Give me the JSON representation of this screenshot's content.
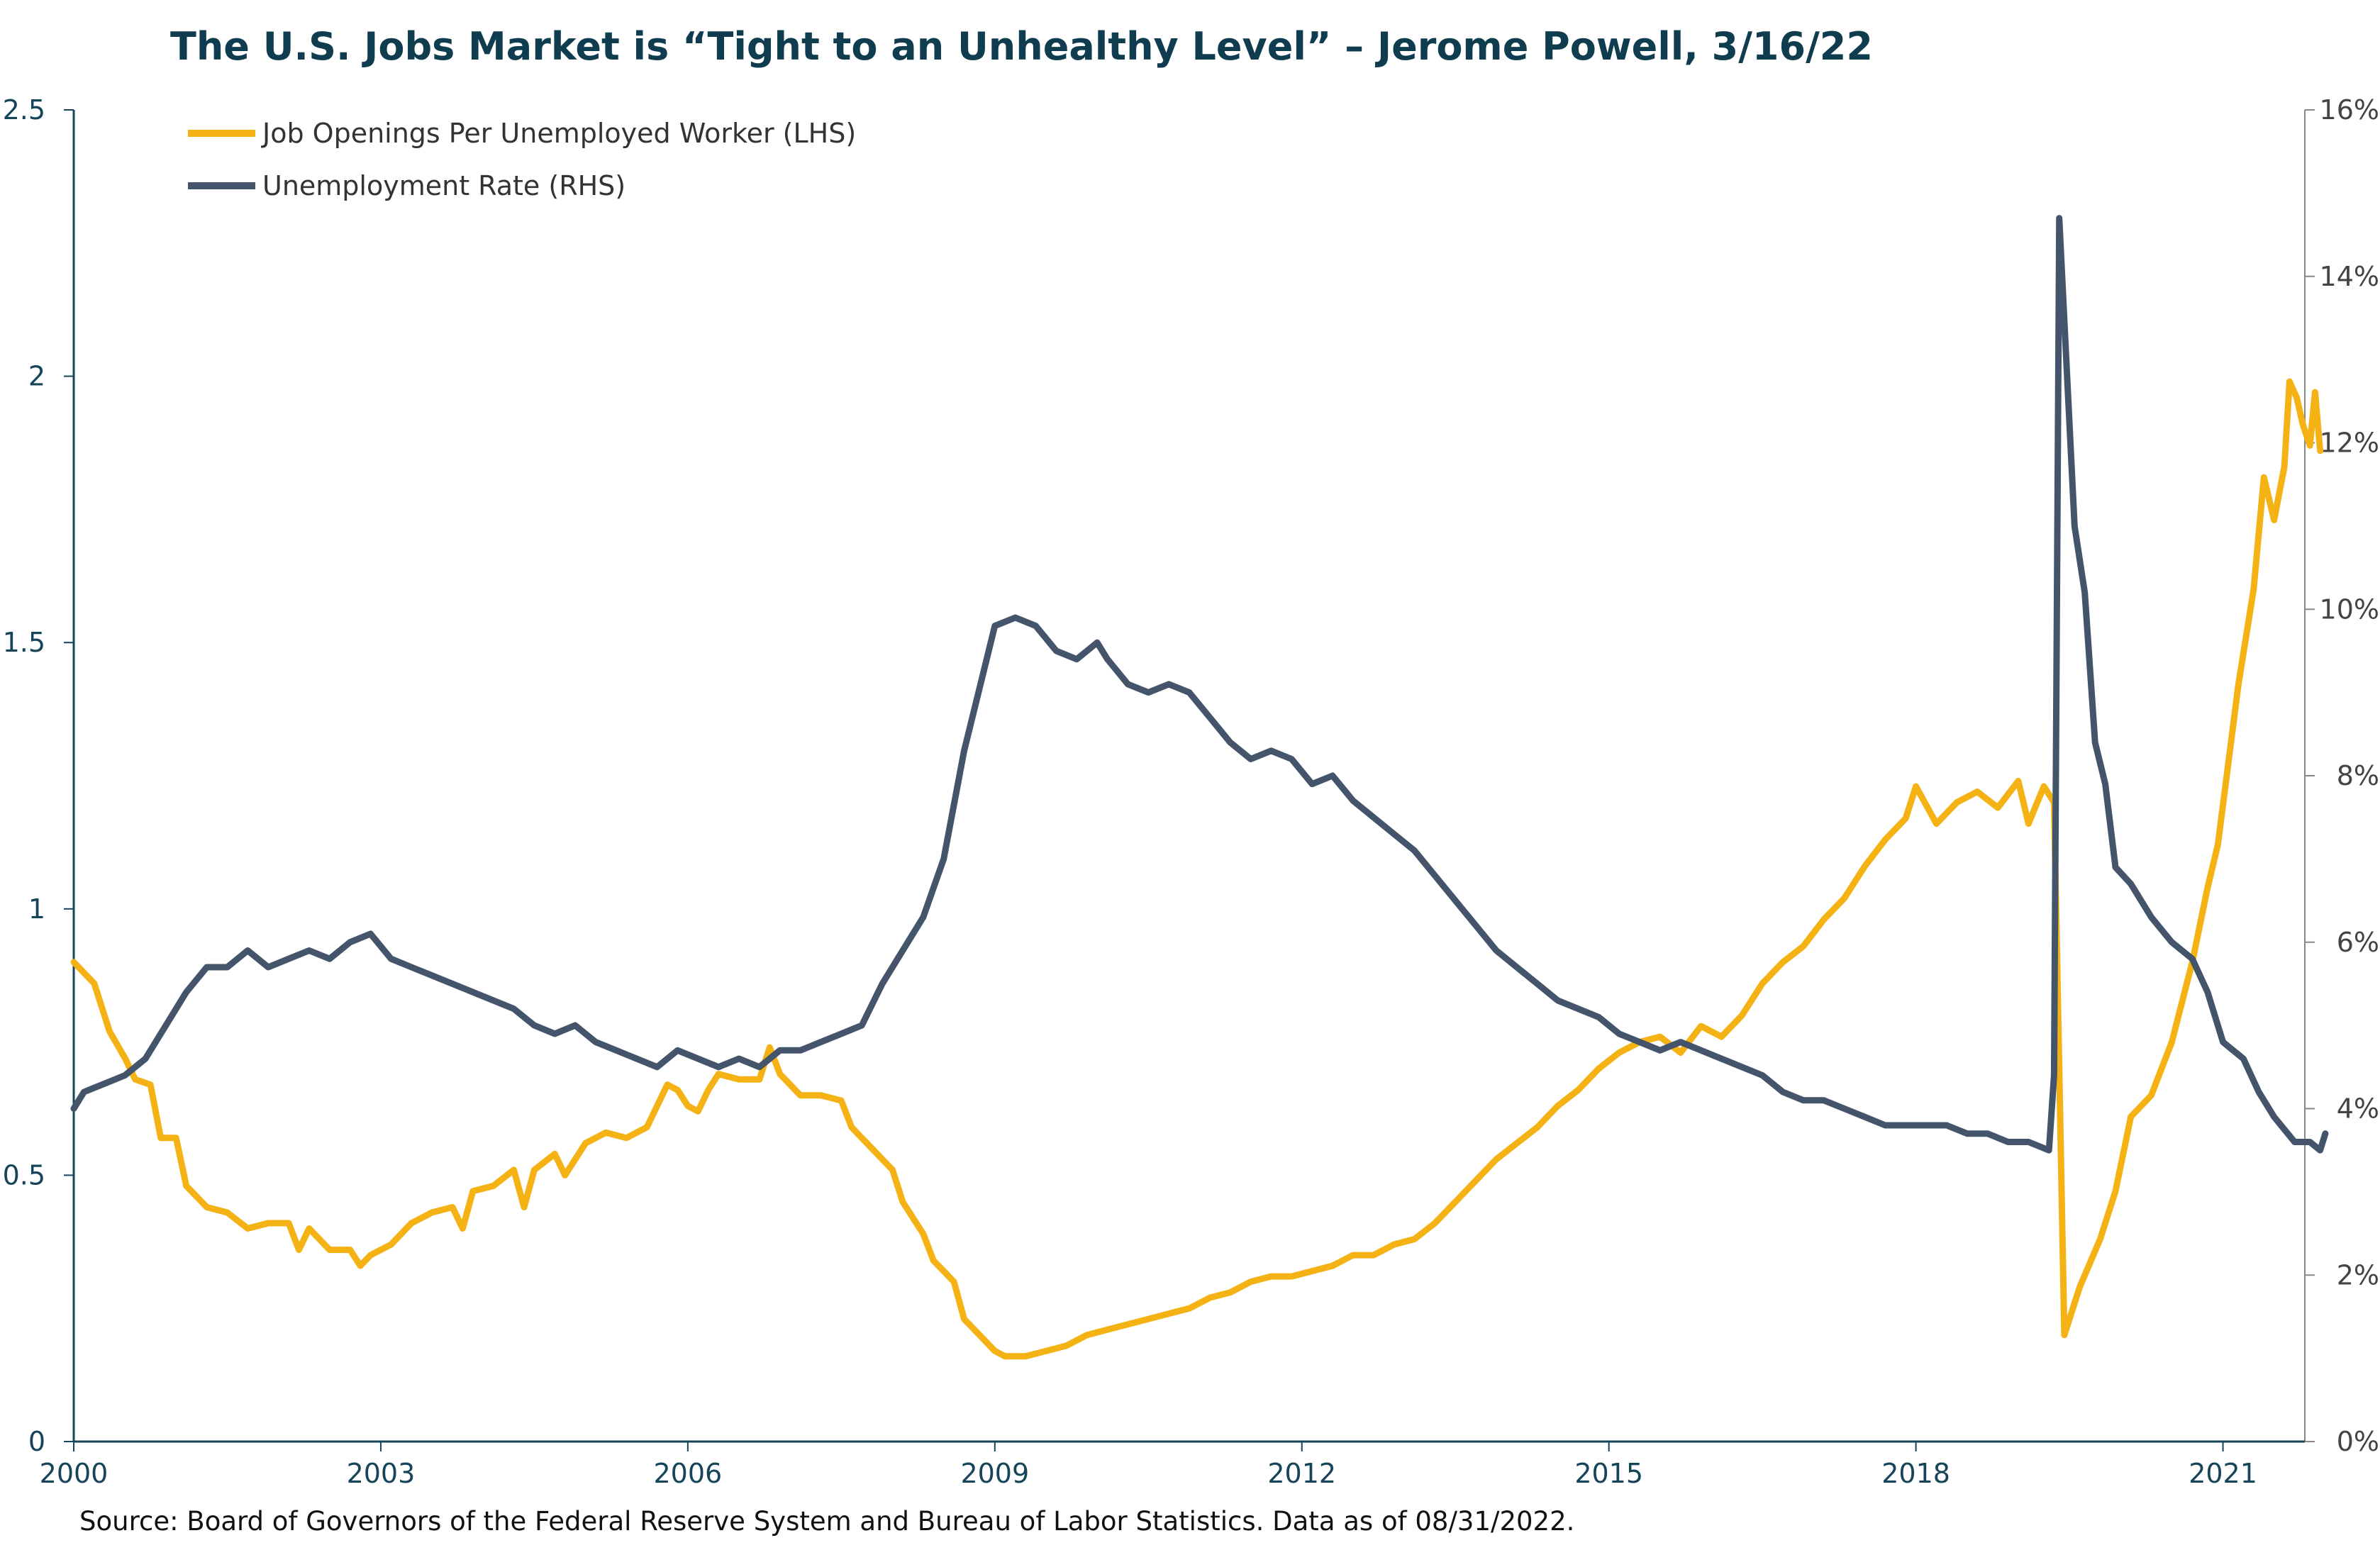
{
  "title": "The U.S. Jobs Market is “Tight to an Unhealthy Level” – Jerome Powell, 3/16/22",
  "source": "Source: Board of Governors of the Federal Reserve System and Bureau of Labor Statistics. Data as of 08/31/2022.",
  "colors": {
    "openings": "#f5b214",
    "unemployment": "#44546a",
    "axis": "#16455a"
  },
  "chart_data": {
    "type": "line",
    "title": "The U.S. Jobs Market is “Tight to an Unhealthy Level” – Jerome Powell, 3/16/22",
    "xlabel": "",
    "ylabel": "",
    "x_range": [
      2000.0,
      2021.8
    ],
    "x_ticks": [
      "2000",
      "2003",
      "2006",
      "2009",
      "2012",
      "2015",
      "2018",
      "2021"
    ],
    "y_left": {
      "range": [
        0,
        2.5
      ],
      "ticks": [
        "0",
        "0.5",
        "1",
        "1.5",
        "2",
        "2.5"
      ]
    },
    "y_right": {
      "range": [
        0,
        16
      ],
      "ticks": [
        "0%",
        "2%",
        "4%",
        "6%",
        "8%",
        "10%",
        "12%",
        "14%",
        "16%"
      ]
    },
    "grid": false,
    "legend_position": "top-left",
    "series": [
      {
        "name": "Job Openings Per Unemployed Worker (LHS)",
        "axis": "left",
        "color": "#f5b214",
        "points": [
          [
            2000.0,
            0.9
          ],
          [
            2000.2,
            0.86
          ],
          [
            2000.35,
            0.77
          ],
          [
            2000.5,
            0.72
          ],
          [
            2000.6,
            0.68
          ],
          [
            2000.75,
            0.67
          ],
          [
            2000.85,
            0.57
          ],
          [
            2001.0,
            0.57
          ],
          [
            2001.1,
            0.48
          ],
          [
            2001.3,
            0.44
          ],
          [
            2001.5,
            0.43
          ],
          [
            2001.7,
            0.4
          ],
          [
            2001.9,
            0.41
          ],
          [
            2002.1,
            0.41
          ],
          [
            2002.2,
            0.36
          ],
          [
            2002.3,
            0.4
          ],
          [
            2002.5,
            0.36
          ],
          [
            2002.7,
            0.36
          ],
          [
            2002.8,
            0.33
          ],
          [
            2002.9,
            0.35
          ],
          [
            2003.1,
            0.37
          ],
          [
            2003.3,
            0.41
          ],
          [
            2003.5,
            0.43
          ],
          [
            2003.7,
            0.44
          ],
          [
            2003.8,
            0.4
          ],
          [
            2003.9,
            0.47
          ],
          [
            2004.1,
            0.48
          ],
          [
            2004.3,
            0.51
          ],
          [
            2004.4,
            0.44
          ],
          [
            2004.5,
            0.51
          ],
          [
            2004.7,
            0.54
          ],
          [
            2004.8,
            0.5
          ],
          [
            2005.0,
            0.56
          ],
          [
            2005.2,
            0.58
          ],
          [
            2005.4,
            0.57
          ],
          [
            2005.6,
            0.59
          ],
          [
            2005.7,
            0.63
          ],
          [
            2005.8,
            0.67
          ],
          [
            2005.9,
            0.66
          ],
          [
            2006.0,
            0.63
          ],
          [
            2006.1,
            0.62
          ],
          [
            2006.2,
            0.66
          ],
          [
            2006.3,
            0.69
          ],
          [
            2006.5,
            0.68
          ],
          [
            2006.7,
            0.68
          ],
          [
            2006.8,
            0.74
          ],
          [
            2006.9,
            0.69
          ],
          [
            2007.1,
            0.65
          ],
          [
            2007.3,
            0.65
          ],
          [
            2007.5,
            0.64
          ],
          [
            2007.6,
            0.59
          ],
          [
            2007.8,
            0.55
          ],
          [
            2008.0,
            0.51
          ],
          [
            2008.1,
            0.45
          ],
          [
            2008.3,
            0.39
          ],
          [
            2008.4,
            0.34
          ],
          [
            2008.6,
            0.3
          ],
          [
            2008.7,
            0.23
          ],
          [
            2008.9,
            0.19
          ],
          [
            2009.0,
            0.17
          ],
          [
            2009.1,
            0.16
          ],
          [
            2009.3,
            0.16
          ],
          [
            2009.5,
            0.17
          ],
          [
            2009.7,
            0.18
          ],
          [
            2009.9,
            0.2
          ],
          [
            2010.1,
            0.21
          ],
          [
            2010.3,
            0.22
          ],
          [
            2010.5,
            0.23
          ],
          [
            2010.7,
            0.24
          ],
          [
            2010.9,
            0.25
          ],
          [
            2011.1,
            0.27
          ],
          [
            2011.3,
            0.28
          ],
          [
            2011.5,
            0.3
          ],
          [
            2011.7,
            0.31
          ],
          [
            2011.9,
            0.31
          ],
          [
            2012.1,
            0.32
          ],
          [
            2012.3,
            0.33
          ],
          [
            2012.5,
            0.35
          ],
          [
            2012.7,
            0.35
          ],
          [
            2012.9,
            0.37
          ],
          [
            2013.1,
            0.38
          ],
          [
            2013.3,
            0.41
          ],
          [
            2013.5,
            0.45
          ],
          [
            2013.7,
            0.49
          ],
          [
            2013.9,
            0.53
          ],
          [
            2014.1,
            0.56
          ],
          [
            2014.3,
            0.59
          ],
          [
            2014.5,
            0.63
          ],
          [
            2014.7,
            0.66
          ],
          [
            2014.9,
            0.7
          ],
          [
            2015.1,
            0.73
          ],
          [
            2015.3,
            0.75
          ],
          [
            2015.5,
            0.76
          ],
          [
            2015.7,
            0.73
          ],
          [
            2015.9,
            0.78
          ],
          [
            2016.1,
            0.76
          ],
          [
            2016.3,
            0.8
          ],
          [
            2016.5,
            0.86
          ],
          [
            2016.7,
            0.9
          ],
          [
            2016.9,
            0.93
          ],
          [
            2017.1,
            0.98
          ],
          [
            2017.3,
            1.02
          ],
          [
            2017.5,
            1.08
          ],
          [
            2017.7,
            1.13
          ],
          [
            2017.9,
            1.17
          ],
          [
            2018.0,
            1.23
          ],
          [
            2018.2,
            1.16
          ],
          [
            2018.4,
            1.2
          ],
          [
            2018.6,
            1.22
          ],
          [
            2018.8,
            1.19
          ],
          [
            2019.0,
            1.24
          ],
          [
            2019.1,
            1.16
          ],
          [
            2019.25,
            1.23
          ],
          [
            2019.35,
            1.2
          ],
          [
            2019.4,
            0.7
          ],
          [
            2019.45,
            0.2
          ],
          [
            2019.6,
            0.29
          ],
          [
            2019.8,
            0.38
          ],
          [
            2019.95,
            0.47
          ],
          [
            2020.1,
            0.61
          ],
          [
            2020.3,
            0.65
          ],
          [
            2020.5,
            0.75
          ],
          [
            2020.7,
            0.9
          ],
          [
            2020.85,
            1.04
          ],
          [
            2020.95,
            1.12
          ],
          [
            2021.05,
            1.27
          ],
          [
            2021.15,
            1.42
          ],
          [
            2021.3,
            1.6
          ],
          [
            2021.4,
            1.81
          ],
          [
            2021.5,
            1.73
          ],
          [
            2021.6,
            1.83
          ],
          [
            2021.65,
            1.99
          ],
          [
            2021.72,
            1.96
          ],
          [
            2021.78,
            1.91
          ],
          [
            2021.85,
            1.87
          ],
          [
            2021.9,
            1.97
          ],
          [
            2021.95,
            1.86
          ]
        ]
      },
      {
        "name": "Unemployment Rate (RHS)",
        "axis": "right",
        "color": "#44546a",
        "points": [
          [
            2000.0,
            4.0
          ],
          [
            2000.1,
            4.2
          ],
          [
            2000.3,
            4.3
          ],
          [
            2000.5,
            4.4
          ],
          [
            2000.7,
            4.6
          ],
          [
            2000.9,
            5.0
          ],
          [
            2001.1,
            5.4
          ],
          [
            2001.3,
            5.7
          ],
          [
            2001.5,
            5.7
          ],
          [
            2001.7,
            5.9
          ],
          [
            2001.9,
            5.7
          ],
          [
            2002.1,
            5.8
          ],
          [
            2002.3,
            5.9
          ],
          [
            2002.5,
            5.8
          ],
          [
            2002.7,
            6.0
          ],
          [
            2002.9,
            6.1
          ],
          [
            2003.1,
            5.8
          ],
          [
            2003.3,
            5.7
          ],
          [
            2003.5,
            5.6
          ],
          [
            2003.7,
            5.5
          ],
          [
            2003.9,
            5.4
          ],
          [
            2004.1,
            5.3
          ],
          [
            2004.3,
            5.2
          ],
          [
            2004.5,
            5.0
          ],
          [
            2004.7,
            4.9
          ],
          [
            2004.9,
            5.0
          ],
          [
            2005.1,
            4.8
          ],
          [
            2005.3,
            4.7
          ],
          [
            2005.5,
            4.6
          ],
          [
            2005.7,
            4.5
          ],
          [
            2005.9,
            4.7
          ],
          [
            2006.1,
            4.6
          ],
          [
            2006.3,
            4.5
          ],
          [
            2006.5,
            4.6
          ],
          [
            2006.7,
            4.5
          ],
          [
            2006.9,
            4.7
          ],
          [
            2007.1,
            4.7
          ],
          [
            2007.3,
            4.8
          ],
          [
            2007.5,
            4.9
          ],
          [
            2007.7,
            5.0
          ],
          [
            2007.9,
            5.5
          ],
          [
            2008.1,
            5.9
          ],
          [
            2008.3,
            6.3
          ],
          [
            2008.5,
            7.0
          ],
          [
            2008.7,
            8.3
          ],
          [
            2008.9,
            9.3
          ],
          [
            2009.0,
            9.8
          ],
          [
            2009.2,
            9.9
          ],
          [
            2009.4,
            9.8
          ],
          [
            2009.6,
            9.5
          ],
          [
            2009.8,
            9.4
          ],
          [
            2010.0,
            9.6
          ],
          [
            2010.1,
            9.4
          ],
          [
            2010.3,
            9.1
          ],
          [
            2010.5,
            9.0
          ],
          [
            2010.7,
            9.1
          ],
          [
            2010.9,
            9.0
          ],
          [
            2011.1,
            8.7
          ],
          [
            2011.3,
            8.4
          ],
          [
            2011.5,
            8.2
          ],
          [
            2011.7,
            8.3
          ],
          [
            2011.9,
            8.2
          ],
          [
            2012.1,
            7.9
          ],
          [
            2012.3,
            8.0
          ],
          [
            2012.5,
            7.7
          ],
          [
            2012.7,
            7.5
          ],
          [
            2012.9,
            7.3
          ],
          [
            2013.1,
            7.1
          ],
          [
            2013.3,
            6.8
          ],
          [
            2013.5,
            6.5
          ],
          [
            2013.7,
            6.2
          ],
          [
            2013.9,
            5.9
          ],
          [
            2014.1,
            5.7
          ],
          [
            2014.3,
            5.5
          ],
          [
            2014.5,
            5.3
          ],
          [
            2014.7,
            5.2
          ],
          [
            2014.9,
            5.1
          ],
          [
            2015.1,
            4.9
          ],
          [
            2015.3,
            4.8
          ],
          [
            2015.5,
            4.7
          ],
          [
            2015.7,
            4.8
          ],
          [
            2015.9,
            4.7
          ],
          [
            2016.1,
            4.6
          ],
          [
            2016.3,
            4.5
          ],
          [
            2016.5,
            4.4
          ],
          [
            2016.7,
            4.2
          ],
          [
            2016.9,
            4.1
          ],
          [
            2017.1,
            4.1
          ],
          [
            2017.3,
            4.0
          ],
          [
            2017.5,
            3.9
          ],
          [
            2017.7,
            3.8
          ],
          [
            2017.9,
            3.8
          ],
          [
            2018.1,
            3.8
          ],
          [
            2018.3,
            3.8
          ],
          [
            2018.5,
            3.7
          ],
          [
            2018.7,
            3.7
          ],
          [
            2018.9,
            3.6
          ],
          [
            2019.1,
            3.6
          ],
          [
            2019.3,
            3.5
          ],
          [
            2019.35,
            4.4
          ],
          [
            2019.4,
            14.7
          ],
          [
            2019.55,
            11.0
          ],
          [
            2019.65,
            10.2
          ],
          [
            2019.75,
            8.4
          ],
          [
            2019.85,
            7.9
          ],
          [
            2019.95,
            6.9
          ],
          [
            2020.1,
            6.7
          ],
          [
            2020.3,
            6.3
          ],
          [
            2020.5,
            6.0
          ],
          [
            2020.7,
            5.8
          ],
          [
            2020.85,
            5.4
          ],
          [
            2021.0,
            4.8
          ],
          [
            2021.2,
            4.6
          ],
          [
            2021.35,
            4.2
          ],
          [
            2021.5,
            3.9
          ],
          [
            2021.7,
            3.6
          ],
          [
            2021.85,
            3.6
          ],
          [
            2021.95,
            3.5
          ],
          [
            2022.0,
            3.7
          ]
        ]
      }
    ]
  }
}
